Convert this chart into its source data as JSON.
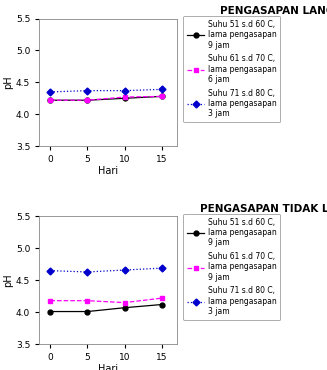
{
  "x": [
    0,
    5,
    10,
    15
  ],
  "top_title": "PENGASAPAN LANGSUNG",
  "bottom_title": "PENGASAPAN TIDAK LANGSUNG",
  "top_series": [
    {
      "y": [
        4.22,
        4.22,
        4.25,
        4.28
      ],
      "color": "#000000",
      "linestyle": "-",
      "marker": "o",
      "label": "Suhu 51 s.d 60 C,\nlama pengasapan\n9 jam"
    },
    {
      "y": [
        4.22,
        4.22,
        4.27,
        4.28
      ],
      "color": "#ff00ff",
      "linestyle": "--",
      "marker": "s",
      "label": "Suhu 61 s.d 70 C,\nlama pengasapan\n6 jam"
    },
    {
      "y": [
        4.35,
        4.37,
        4.37,
        4.39
      ],
      "color": "#0000cc",
      "linestyle": ":",
      "marker": "D",
      "label": "Suhu 71 s.d 80 C,\nlama pengasapan\n3 jam"
    }
  ],
  "bottom_series": [
    {
      "y": [
        4.01,
        4.01,
        4.07,
        4.12
      ],
      "color": "#000000",
      "linestyle": "-",
      "marker": "o",
      "label": "Suhu 51 s.d 60 C,\nlama pengasapan\n9 jam"
    },
    {
      "y": [
        4.18,
        4.18,
        4.15,
        4.22
      ],
      "color": "#ff00ff",
      "linestyle": "--",
      "marker": "s",
      "label": "Suhu 61 s.d 70 C,\nlama pengasapan\n9 jam"
    },
    {
      "y": [
        4.65,
        4.63,
        4.66,
        4.69
      ],
      "color": "#0000cc",
      "linestyle": ":",
      "marker": "D",
      "label": "Suhu 71 s.d 80 C,\nlama pengasapan\n3 jam"
    }
  ],
  "ylim": [
    3.5,
    5.5
  ],
  "yticks": [
    3.5,
    4.0,
    4.5,
    5.0,
    5.5
  ],
  "xticks": [
    0,
    5,
    10,
    15
  ],
  "xlabel": "Hari",
  "ylabel": "pH",
  "legend_fontsize": 5.5,
  "title_fontsize": 7.5,
  "axis_label_fontsize": 7,
  "tick_fontsize": 6.5
}
